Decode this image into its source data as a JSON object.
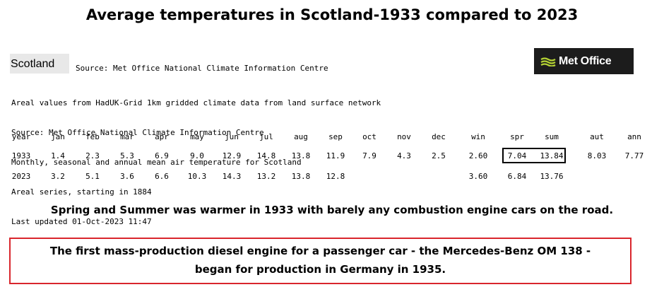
{
  "title": "Average temperatures in Scotland-1933 compared to 2023",
  "region_label": "Scotland",
  "source_top": "Source: Met Office National Climate Information Centre",
  "logo_text": "Met Office",
  "logo_icon": "met-office-stripes-icon",
  "info_lines": [
    "Areal values from HadUK-Grid 1km gridded climate data from land surface network",
    "Source: Met Office National Climate Information Centre",
    "Monthly, seasonal and annual mean air temperature for Scotland",
    "Areal series, starting in 1884",
    "Last updated 01-Oct-2023 11:47"
  ],
  "table": {
    "columns": [
      "year",
      "jan",
      "feb",
      "mar",
      "apr",
      "may",
      "jun",
      "jul",
      "aug",
      "sep",
      "oct",
      "nov",
      "dec",
      "win",
      "spr",
      "sum",
      "aut",
      "ann"
    ],
    "rows": [
      [
        "1933",
        "1.4",
        "2.3",
        "5.3",
        "6.9",
        "9.0",
        "12.9",
        "14.8",
        "13.8",
        "11.9",
        "7.9",
        "4.3",
        "2.5",
        "2.60",
        "7.04",
        "13.84",
        "8.03",
        "7.77"
      ],
      [
        "2023",
        "3.2",
        "5.1",
        "3.6",
        "6.6",
        "10.3",
        "14.3",
        "13.2",
        "13.8",
        "12.8",
        "",
        "",
        "",
        "3.60",
        "6.84",
        "13.76",
        "",
        ""
      ]
    ]
  },
  "statement": "Spring and Summer was warmer in 1933 with barely any combustion engine cars on the road.",
  "note_lines": [
    "The first mass-production diesel engine for a passenger car - the Mercedes-Benz OM 138 -",
    "began for production in Germany in 1935."
  ],
  "colors": {
    "note_border": "#d9262d",
    "logo_bg": "#1c1c1c",
    "logo_accent": "#b5d334"
  }
}
